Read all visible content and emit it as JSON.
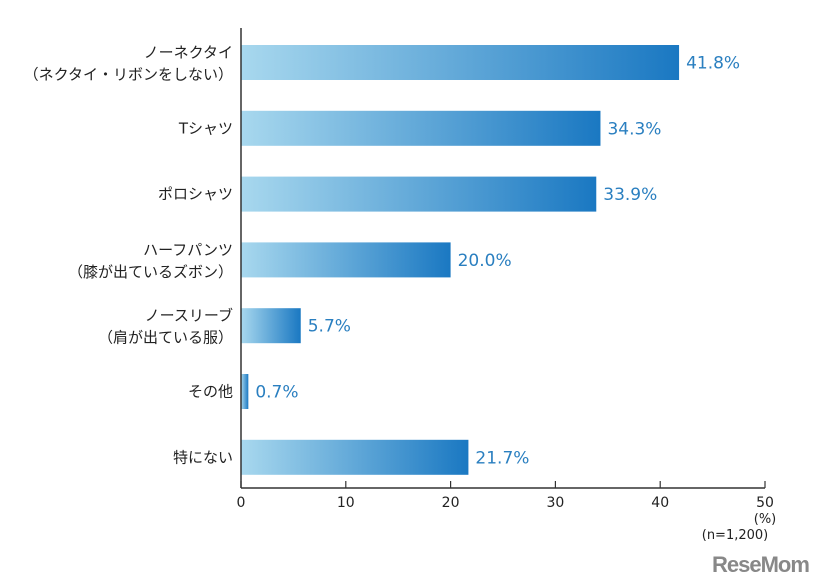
{
  "chart_data": {
    "type": "bar",
    "orientation": "horizontal",
    "categories": [
      [
        "ノーネクタイ",
        "（ネクタイ・リボンをしない）"
      ],
      [
        "Tシャツ"
      ],
      [
        "ポロシャツ"
      ],
      [
        "ハーフパンツ",
        "（膝が出ているズボン）"
      ],
      [
        "ノースリーブ",
        "（肩が出ている服）"
      ],
      [
        "その他"
      ],
      [
        "特にない"
      ]
    ],
    "values": [
      41.8,
      34.3,
      33.9,
      20.0,
      5.7,
      0.7,
      21.7
    ],
    "value_labels": [
      "41.8%",
      "34.3%",
      "33.9%",
      "20.0%",
      "5.7%",
      "0.7%",
      "21.7%"
    ],
    "xlim": [
      0,
      50
    ],
    "xticks": [
      0,
      10,
      20,
      30,
      40,
      50
    ],
    "unit_label": "(%)",
    "sample_note": "(n=1,200)",
    "grid": false,
    "colors": {
      "bar_start": "#a8d8ee",
      "bar_end": "#1a78c2",
      "value_text": "#2a7fc0"
    }
  },
  "watermark": "ReseMom"
}
